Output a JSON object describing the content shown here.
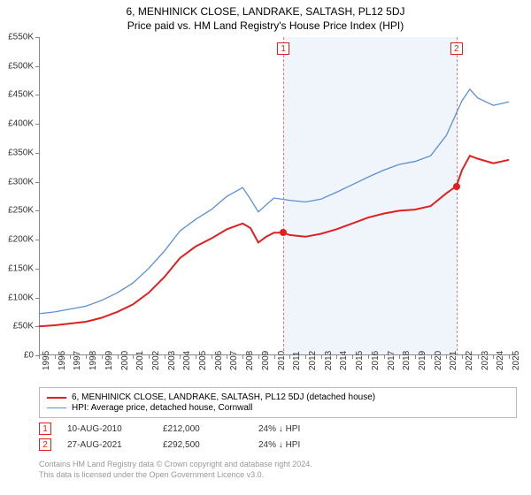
{
  "title": {
    "main": "6, MENHINICK CLOSE, LANDRAKE, SALTASH, PL12 5DJ",
    "sub": "Price paid vs. HM Land Registry's House Price Index (HPI)"
  },
  "chart": {
    "type": "line",
    "background_color": "#ffffff",
    "shaded_band_color": "#f0f5fc",
    "axis_color": "#888888",
    "ylim": [
      0,
      550000
    ],
    "ytick_step": 50000,
    "y_labels": [
      "£0",
      "£50K",
      "£100K",
      "£150K",
      "£200K",
      "£250K",
      "£300K",
      "£350K",
      "£400K",
      "£450K",
      "£500K",
      "£550K"
    ],
    "x_range": [
      1995,
      2025.5
    ],
    "x_labels": [
      "1995",
      "1996",
      "1997",
      "1998",
      "1999",
      "2000",
      "2001",
      "2002",
      "2003",
      "2004",
      "2005",
      "2006",
      "2007",
      "2008",
      "2009",
      "2010",
      "2011",
      "2012",
      "2013",
      "2014",
      "2015",
      "2016",
      "2017",
      "2018",
      "2019",
      "2020",
      "2021",
      "2022",
      "2023",
      "2024",
      "2025"
    ],
    "series": [
      {
        "id": "property",
        "label": "6, MENHINICK CLOSE, LANDRAKE, SALTASH, PL12 5DJ (detached house)",
        "color": "#e02020",
        "width": 2,
        "data": [
          [
            1995,
            50000
          ],
          [
            1996,
            52000
          ],
          [
            1997,
            55000
          ],
          [
            1998,
            58000
          ],
          [
            1999,
            65000
          ],
          [
            2000,
            75000
          ],
          [
            2001,
            88000
          ],
          [
            2002,
            108000
          ],
          [
            2003,
            135000
          ],
          [
            2004,
            168000
          ],
          [
            2005,
            188000
          ],
          [
            2006,
            202000
          ],
          [
            2007,
            218000
          ],
          [
            2008,
            228000
          ],
          [
            2008.5,
            220000
          ],
          [
            2009,
            195000
          ],
          [
            2009.5,
            205000
          ],
          [
            2010,
            212000
          ],
          [
            2010.6,
            212000
          ],
          [
            2011,
            208000
          ],
          [
            2012,
            205000
          ],
          [
            2013,
            210000
          ],
          [
            2014,
            218000
          ],
          [
            2015,
            228000
          ],
          [
            2016,
            238000
          ],
          [
            2017,
            245000
          ],
          [
            2018,
            250000
          ],
          [
            2019,
            252000
          ],
          [
            2020,
            258000
          ],
          [
            2021,
            280000
          ],
          [
            2021.65,
            292500
          ],
          [
            2022,
            320000
          ],
          [
            2022.5,
            345000
          ],
          [
            2023,
            340000
          ],
          [
            2024,
            332000
          ],
          [
            2025,
            338000
          ]
        ]
      },
      {
        "id": "hpi",
        "label": "HPI: Average price, detached house, Cornwall",
        "color": "#5b8fd6",
        "width": 1.3,
        "data": [
          [
            1995,
            72000
          ],
          [
            1996,
            75000
          ],
          [
            1997,
            80000
          ],
          [
            1998,
            85000
          ],
          [
            1999,
            95000
          ],
          [
            2000,
            108000
          ],
          [
            2001,
            125000
          ],
          [
            2002,
            150000
          ],
          [
            2003,
            180000
          ],
          [
            2004,
            215000
          ],
          [
            2005,
            235000
          ],
          [
            2006,
            252000
          ],
          [
            2007,
            275000
          ],
          [
            2008,
            290000
          ],
          [
            2008.5,
            270000
          ],
          [
            2009,
            248000
          ],
          [
            2009.5,
            260000
          ],
          [
            2010,
            272000
          ],
          [
            2011,
            268000
          ],
          [
            2012,
            265000
          ],
          [
            2013,
            270000
          ],
          [
            2014,
            282000
          ],
          [
            2015,
            295000
          ],
          [
            2016,
            308000
          ],
          [
            2017,
            320000
          ],
          [
            2018,
            330000
          ],
          [
            2019,
            335000
          ],
          [
            2020,
            345000
          ],
          [
            2021,
            380000
          ],
          [
            2022,
            440000
          ],
          [
            2022.5,
            460000
          ],
          [
            2023,
            445000
          ],
          [
            2024,
            432000
          ],
          [
            2025,
            438000
          ]
        ]
      }
    ],
    "transactions": [
      {
        "n": "1",
        "year": 2010.6,
        "price": 212000
      },
      {
        "n": "2",
        "year": 2021.65,
        "price": 292500
      }
    ],
    "marker_fill": "#e02020",
    "marker_size": 8,
    "vline_color": "#e07a7a"
  },
  "legend": {
    "rows": [
      {
        "color": "#e02020",
        "width": 2,
        "label": "6, MENHINICK CLOSE, LANDRAKE, SALTASH, PL12 5DJ (detached house)"
      },
      {
        "color": "#5b8fd6",
        "width": 1.3,
        "label": "HPI: Average price, detached house, Cornwall"
      }
    ]
  },
  "data_table": {
    "rows": [
      {
        "n": "1",
        "date": "10-AUG-2010",
        "price": "£212,000",
        "change": "24% ↓ HPI"
      },
      {
        "n": "2",
        "date": "27-AUG-2021",
        "price": "£292,500",
        "change": "24% ↓ HPI"
      }
    ]
  },
  "footer": {
    "line1": "Contains HM Land Registry data © Crown copyright and database right 2024.",
    "line2": "This data is licensed under the Open Government Licence v3.0."
  }
}
